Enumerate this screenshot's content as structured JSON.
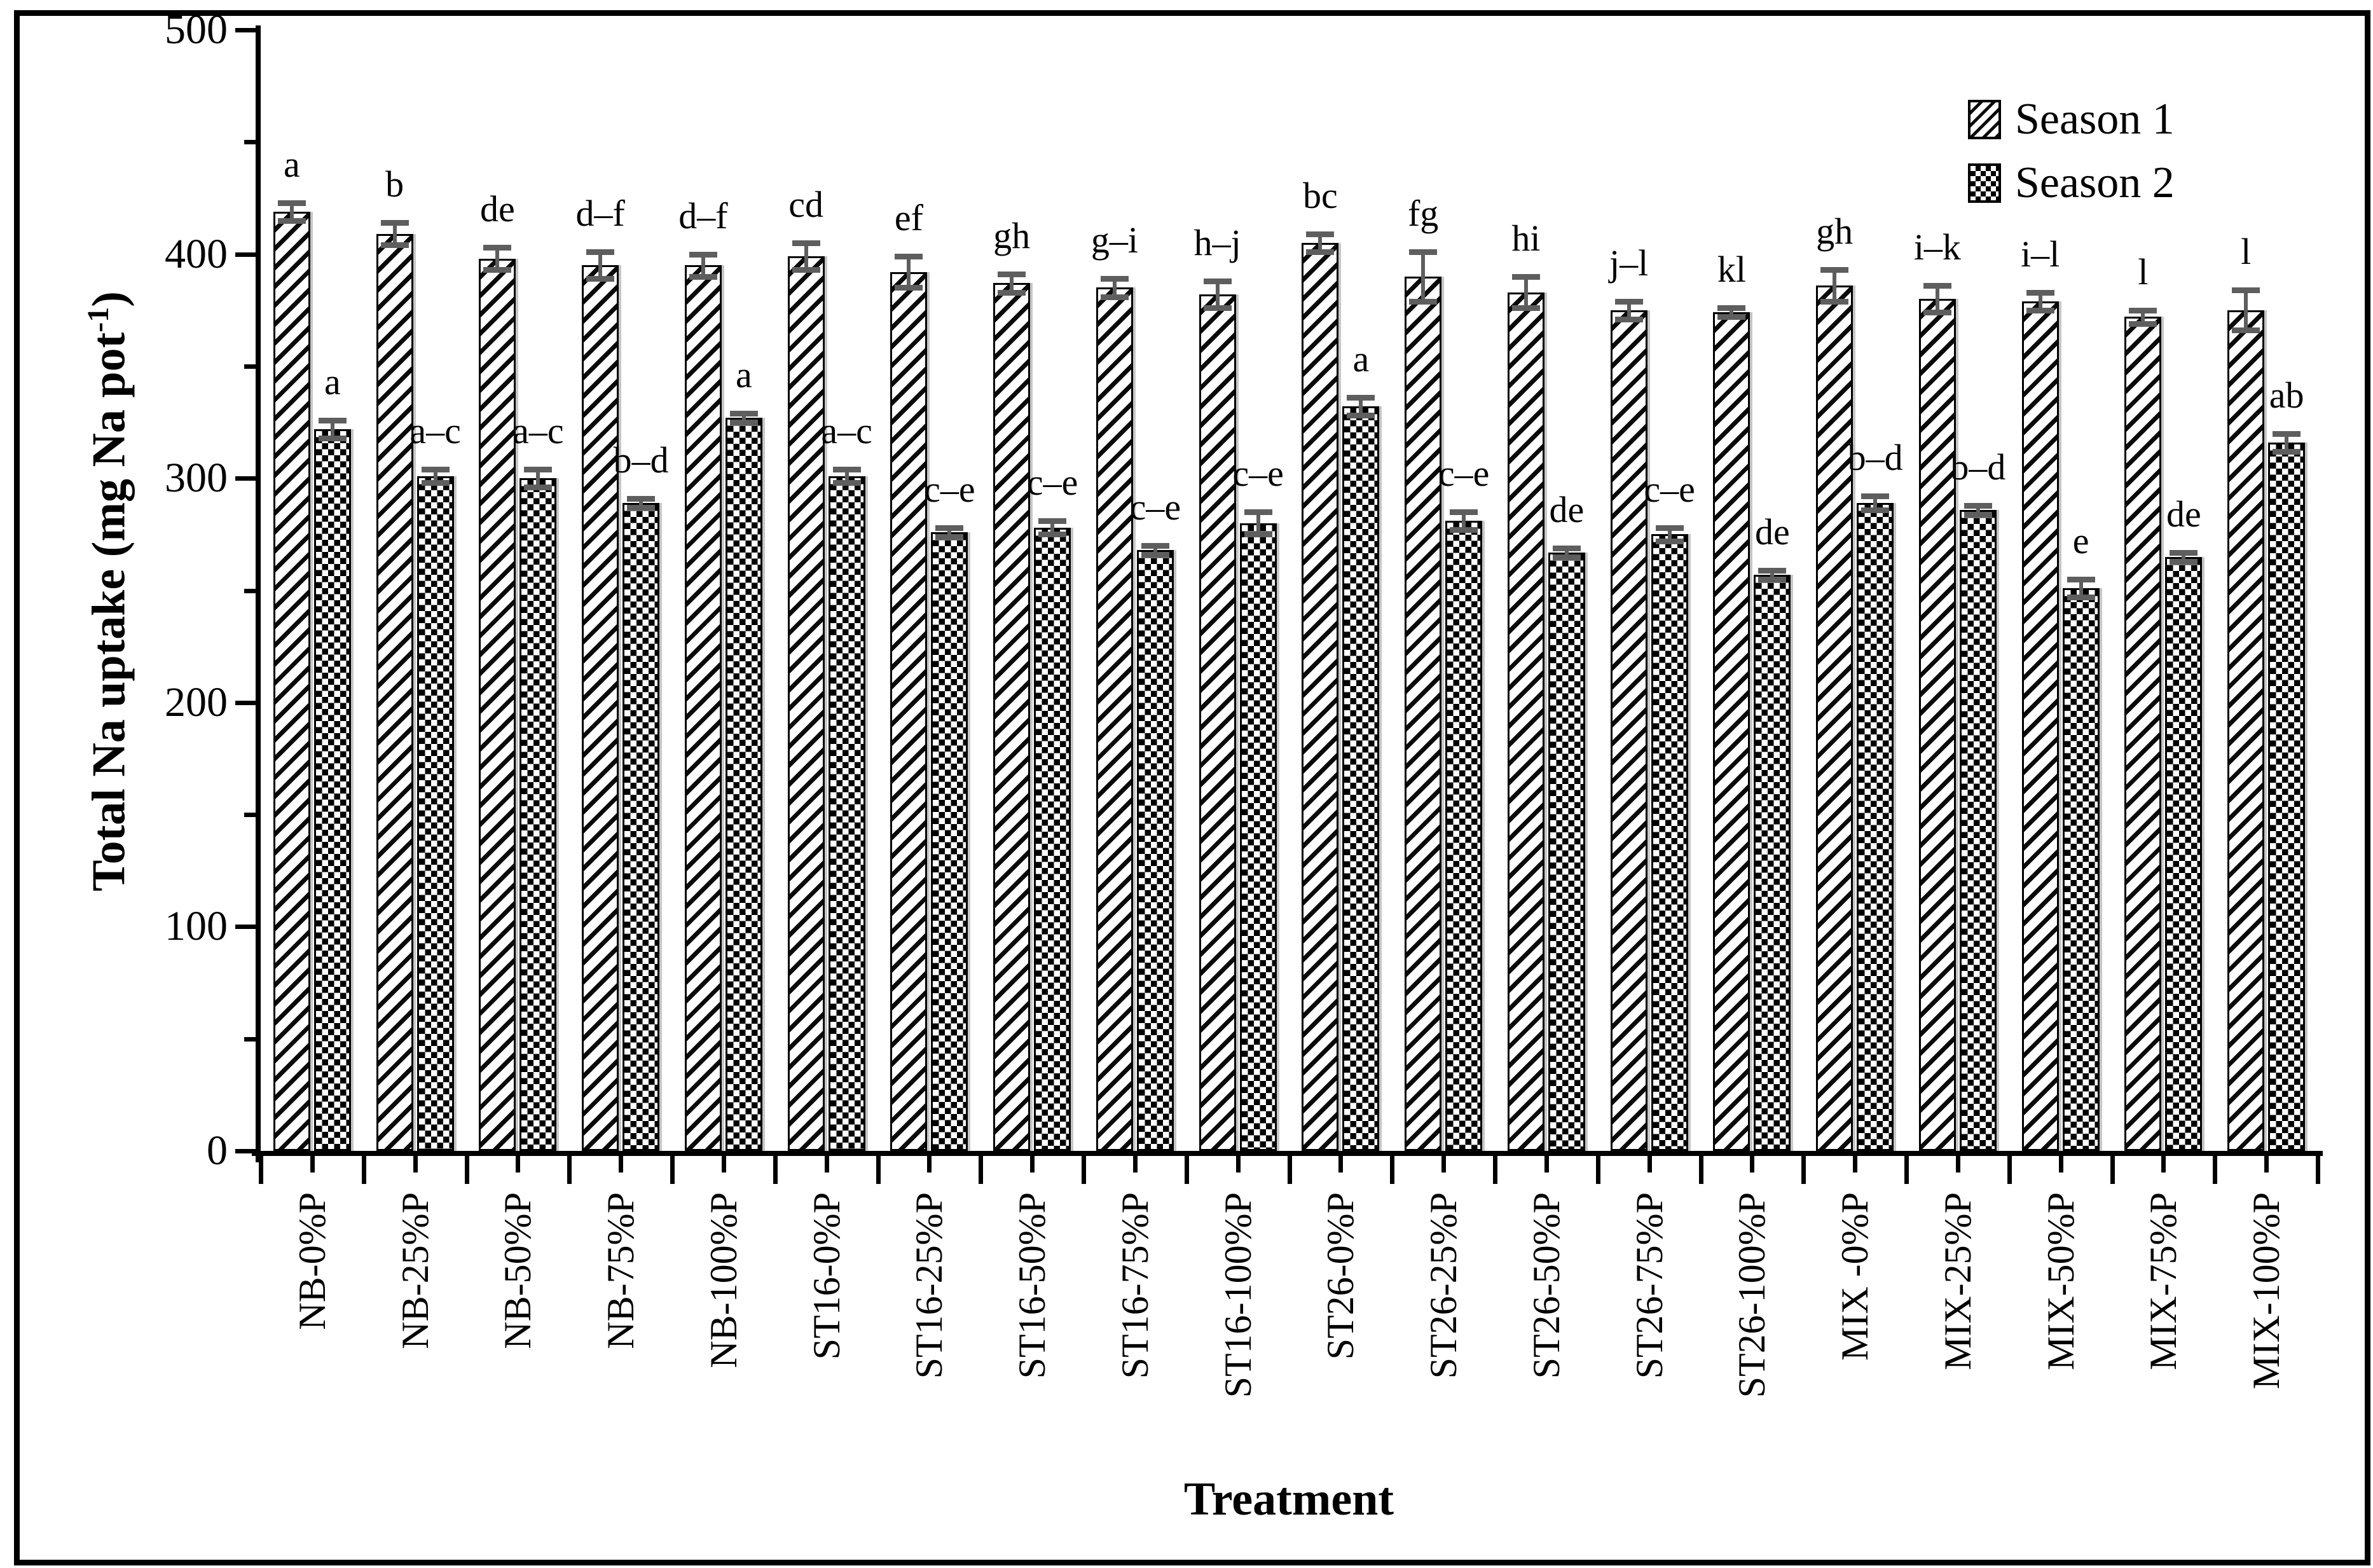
{
  "figure": {
    "background": "#ffffff",
    "border_color": "#000000",
    "bar_outline_color": "#000000",
    "error_bar_color": "#5e5e5e"
  },
  "legend": {
    "position": "top-right",
    "items": [
      {
        "label": "Season 1",
        "pattern": "diagonal-hatch"
      },
      {
        "label": "Season 2",
        "pattern": "checkerboard"
      }
    ]
  },
  "axes": {
    "y": {
      "title_prefix": "Total Na uptake (mg Na pot",
      "title_sup": "-1",
      "title_suffix": ")",
      "min": 0,
      "max": 500,
      "major_step": 100,
      "minor_step": 50,
      "tick_labels": [
        "0",
        "100",
        "200",
        "300",
        "400",
        "500"
      ]
    },
    "x": {
      "title": "Treatment"
    }
  },
  "chart_data": {
    "type": "bar",
    "title": "",
    "xlabel": "Treatment",
    "ylabel": "Total Na uptake (mg Na pot-1)",
    "ylim": [
      0,
      500
    ],
    "grid": false,
    "legend_position": "top-right",
    "categories": [
      "NB-0%P",
      "NB-25%P",
      "NB-50%P",
      "NB-75%P",
      "NB-100%P",
      "ST16-0%P",
      "ST16-25%P",
      "ST16-50%P",
      "ST16-75%P",
      "ST16-100%P",
      "ST26-0%P",
      "ST26-25%P",
      "ST26-50%P",
      "ST26-75%P",
      "ST26-100%P",
      "MIX -0%P",
      "MIX-25%P",
      "MIX-50%P",
      "MIX-75%P",
      "MIX-100%P"
    ],
    "series": [
      {
        "name": "Season 1",
        "values": [
          419,
          409,
          398,
          395,
          395,
          399,
          392,
          387,
          385,
          382,
          405,
          390,
          383,
          375,
          374,
          386,
          380,
          379,
          372,
          375
        ],
        "errors": [
          4,
          5,
          5,
          6,
          5,
          6,
          7,
          4,
          4,
          6,
          4,
          11,
          7,
          4,
          2,
          7,
          6,
          4,
          3,
          9
        ],
        "letters": [
          "a",
          "b",
          "de",
          "d–f",
          "d–f",
          "cd",
          "ef",
          "gh",
          "g–i",
          "h–j",
          "bc",
          "fg",
          "hi",
          "j–l",
          "kl",
          "gh",
          "i–k",
          "i–l",
          "l",
          "l"
        ]
      },
      {
        "name": "Season 2",
        "values": [
          322,
          301,
          300,
          289,
          327,
          301,
          276,
          278,
          268,
          280,
          332,
          281,
          267,
          275,
          257,
          289,
          286,
          251,
          265,
          316
        ],
        "errors": [
          4,
          3,
          4,
          2,
          2,
          3,
          2,
          3,
          2,
          5,
          4,
          4,
          2,
          3,
          2,
          3,
          2,
          4,
          2,
          4
        ],
        "letters": [
          "a",
          "a–c",
          "a–c",
          "b–d",
          "a",
          "a–c",
          "c–e",
          "c–e",
          "c–e",
          "c–e",
          "a",
          "c–e",
          "de",
          "c–e",
          "de",
          "b–d",
          "b–d",
          "e",
          "de",
          "ab"
        ]
      }
    ]
  }
}
